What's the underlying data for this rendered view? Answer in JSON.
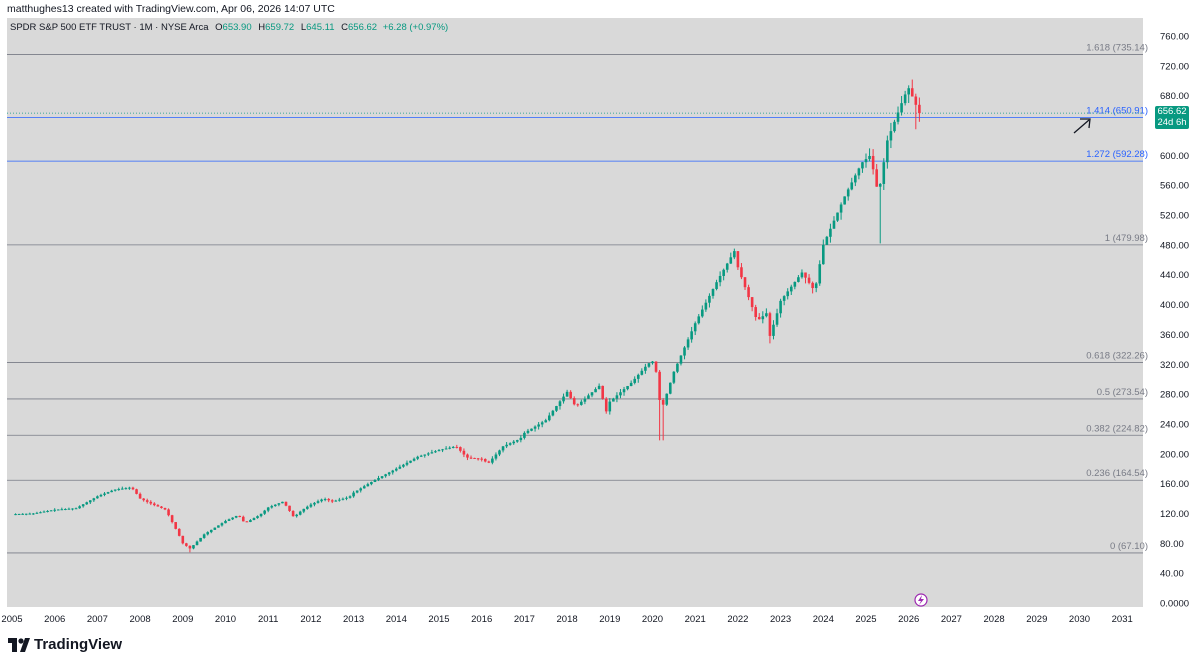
{
  "header": {
    "credit": "matthughes13 created with TradingView.com, Apr 06, 2026 14:07 UTC"
  },
  "legend": {
    "symbol": "SPDR S&P 500 ETF TRUST · 1M · NYSE Arca",
    "open_label": "O",
    "open": "653.90",
    "high_label": "H",
    "high": "659.72",
    "low_label": "L",
    "low": "645.11",
    "close_label": "C",
    "close": "656.62",
    "change": "+6.28 (+0.97%)"
  },
  "price_tag": {
    "price": "656.62",
    "countdown": "24d 6h"
  },
  "brand": {
    "name": "TradingView"
  },
  "colors": {
    "up": "#089981",
    "down": "#f23645",
    "fib_gray": "#787b86",
    "fib_blue": "#2962ff",
    "price_line": "#089981"
  },
  "chart_data": {
    "type": "candlestick",
    "title": "SPDR S&P 500 ETF TRUST · 1M · NYSE Arca",
    "xlabel": "",
    "ylabel": "",
    "ylim": [
      0,
      780
    ],
    "xlim": [
      2005.0,
      2031.6
    ],
    "y_ticks": [
      "0.0000",
      "40.00",
      "80.00",
      "120.00",
      "160.00",
      "200.00",
      "240.00",
      "280.00",
      "320.00",
      "360.00",
      "400.00",
      "440.00",
      "480.00",
      "520.00",
      "560.00",
      "600.00",
      "640.00",
      "680.00",
      "720.00",
      "760.00"
    ],
    "x_ticks": [
      "2005",
      "2006",
      "2007",
      "2008",
      "2009",
      "2010",
      "2011",
      "2012",
      "2013",
      "2014",
      "2015",
      "2016",
      "2017",
      "2018",
      "2019",
      "2020",
      "2021",
      "2022",
      "2023",
      "2024",
      "2025",
      "2026",
      "2027",
      "2028",
      "2029",
      "2030",
      "2031"
    ],
    "fib_levels": [
      {
        "ratio": "0",
        "label": "0 (67.10)",
        "value": 67.1,
        "color": "gray"
      },
      {
        "ratio": "0.236",
        "label": "0.236 (164.54)",
        "value": 164.54,
        "color": "gray"
      },
      {
        "ratio": "0.382",
        "label": "0.382 (224.82)",
        "value": 224.82,
        "color": "gray"
      },
      {
        "ratio": "0.5",
        "label": "0.5 (273.54)",
        "value": 273.54,
        "color": "gray"
      },
      {
        "ratio": "0.618",
        "label": "0.618 (322.26)",
        "value": 322.26,
        "color": "gray"
      },
      {
        "ratio": "1",
        "label": "1 (479.98)",
        "value": 479.98,
        "color": "gray"
      },
      {
        "ratio": "1.272",
        "label": "1.272 (592.28)",
        "value": 592.28,
        "color": "blue"
      },
      {
        "ratio": "1.414",
        "label": "1.414 (650.91)",
        "value": 650.91,
        "color": "blue"
      },
      {
        "ratio": "1.618",
        "label": "1.618 (735.14)",
        "value": 735.14,
        "color": "gray"
      }
    ],
    "last_price": 656.62,
    "annotation": {
      "type": "arrow",
      "direction": "up-right",
      "near_level": "1.414"
    },
    "anchors": [
      [
        2005.0,
        119
      ],
      [
        2005.5,
        120
      ],
      [
        2006.0,
        125
      ],
      [
        2006.5,
        127
      ],
      [
        2007.0,
        143
      ],
      [
        2007.4,
        152
      ],
      [
        2007.8,
        155
      ],
      [
        2008.0,
        140
      ],
      [
        2008.3,
        132
      ],
      [
        2008.6,
        125
      ],
      [
        2008.9,
        92
      ],
      [
        2009.0,
        80
      ],
      [
        2009.17,
        73
      ],
      [
        2009.5,
        92
      ],
      [
        2010.0,
        110
      ],
      [
        2010.3,
        118
      ],
      [
        2010.45,
        107
      ],
      [
        2010.8,
        118
      ],
      [
        2011.0,
        128
      ],
      [
        2011.35,
        136
      ],
      [
        2011.6,
        115
      ],
      [
        2011.8,
        125
      ],
      [
        2012.0,
        132
      ],
      [
        2012.3,
        140
      ],
      [
        2012.5,
        136
      ],
      [
        2012.9,
        142
      ],
      [
        2013.0,
        148
      ],
      [
        2013.5,
        165
      ],
      [
        2014.0,
        180
      ],
      [
        2014.5,
        196
      ],
      [
        2015.0,
        205
      ],
      [
        2015.4,
        210
      ],
      [
        2015.65,
        195
      ],
      [
        2016.0,
        193
      ],
      [
        2016.15,
        187
      ],
      [
        2016.5,
        210
      ],
      [
        2016.9,
        220
      ],
      [
        2017.0,
        228
      ],
      [
        2017.5,
        245
      ],
      [
        2018.0,
        283
      ],
      [
        2018.2,
        263
      ],
      [
        2018.75,
        291
      ],
      [
        2018.95,
        250
      ],
      [
        2019.0,
        270
      ],
      [
        2019.5,
        295
      ],
      [
        2019.9,
        321
      ],
      [
        2020.05,
        325
      ],
      [
        2020.2,
        257
      ],
      [
        2020.5,
        310
      ],
      [
        2020.9,
        362
      ],
      [
        2021.0,
        375
      ],
      [
        2021.5,
        430
      ],
      [
        2021.95,
        475
      ],
      [
        2022.0,
        450
      ],
      [
        2022.45,
        378
      ],
      [
        2022.7,
        390
      ],
      [
        2022.75,
        358
      ],
      [
        2022.9,
        385
      ],
      [
        2023.0,
        405
      ],
      [
        2023.5,
        443
      ],
      [
        2023.8,
        418
      ],
      [
        2024.0,
        480
      ],
      [
        2024.5,
        545
      ],
      [
        2024.9,
        590
      ],
      [
        2025.1,
        600
      ],
      [
        2025.25,
        558
      ],
      [
        2025.3,
        550
      ],
      [
        2025.5,
        620
      ],
      [
        2025.9,
        680
      ],
      [
        2026.0,
        690
      ],
      [
        2026.15,
        670
      ],
      [
        2026.25,
        656.62
      ]
    ],
    "wicks": [
      {
        "x": 2009.17,
        "low": 68
      },
      {
        "x": 2020.2,
        "low": 218
      },
      {
        "x": 2025.3,
        "low": 482
      },
      {
        "x": 2022.75,
        "low": 348
      },
      {
        "x": 2026.15,
        "low": 635
      }
    ]
  }
}
